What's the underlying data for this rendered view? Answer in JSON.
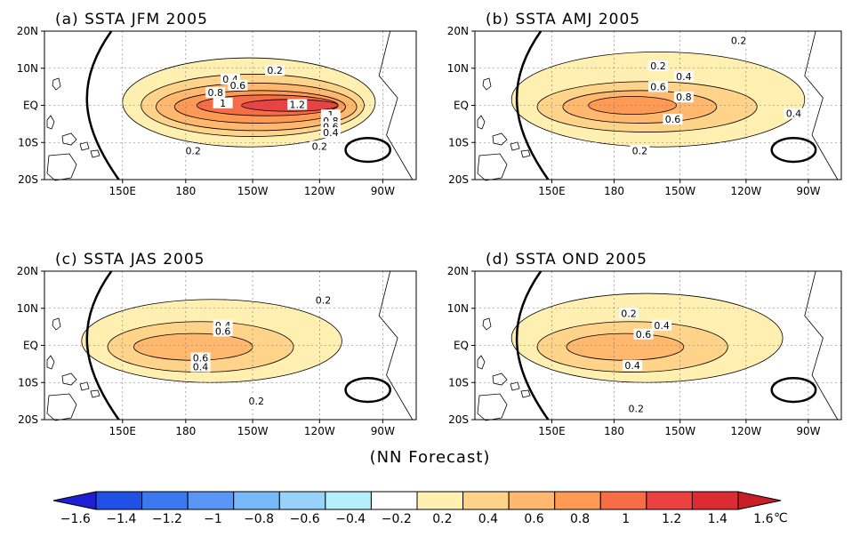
{
  "caption": "(NN Forecast)",
  "panels": [
    {
      "title": "(a) SSTA JFM 2005",
      "peak_anomaly": 1.3,
      "contour_labels": [
        "0.2",
        "0.4",
        "0.6",
        "0.8",
        "1",
        "1.2",
        "1",
        "0.8",
        "0.6",
        "0.4",
        "0.2",
        "0.2"
      ]
    },
    {
      "title": "(b) SSTA AMJ 2005",
      "peak_anomaly": 0.9,
      "contour_labels": [
        "0.2",
        "0.2",
        "0.4",
        "0.6",
        "0.8",
        "0.6",
        "0.4",
        "0.2"
      ]
    },
    {
      "title": "(c) SSTA JAS 2005",
      "peak_anomaly": 0.75,
      "contour_labels": [
        "0.2",
        "0.4",
        "0.6",
        "0.6",
        "0.4",
        "0.2"
      ]
    },
    {
      "title": "(d) SSTA OND 2005",
      "peak_anomaly": 0.75,
      "contour_labels": [
        "0.2",
        "0.4",
        "0.6",
        "0.4",
        "0.2"
      ]
    }
  ],
  "lat_ticks": [
    "20N",
    "10N",
    "EQ",
    "10S",
    "20S"
  ],
  "lon_ticks": [
    "150E",
    "180",
    "150W",
    "120W",
    "90W"
  ],
  "colorbar": {
    "levels": [
      "-1.6",
      "-1.4",
      "-1.2",
      "-1",
      "-0.8",
      "-0.6",
      "-0.4",
      "-0.2",
      "0.2",
      "0.4",
      "0.6",
      "0.8",
      "1",
      "1.2",
      "1.4",
      "1.6"
    ],
    "unit": "℃",
    "colors": [
      "#1e1ed2",
      "#2050e6",
      "#3c78f0",
      "#5a96f5",
      "#78b9fa",
      "#96d2fa",
      "#b4f0fa",
      "#ffffff",
      "#ffefb0",
      "#ffd48a",
      "#ffb86e",
      "#ff9a55",
      "#f76e46",
      "#ec4141",
      "#dc2b32",
      "#c81e28"
    ]
  }
}
